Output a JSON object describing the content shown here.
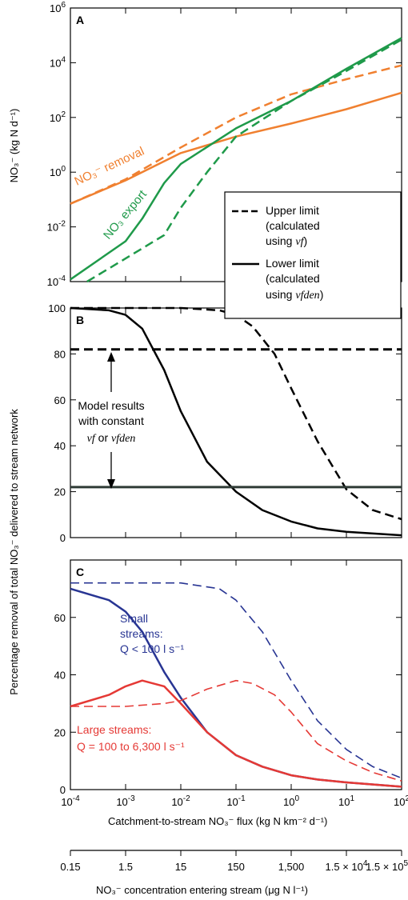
{
  "chart_data": [
    {
      "panel": "A",
      "type": "line",
      "x_scale": "log",
      "y_scale": "log",
      "xlim": [
        0.0001,
        100
      ],
      "ylim": [
        0.0001,
        1000000
      ],
      "ylabel": "NO₃⁻ (kg N d⁻¹)",
      "y_ticks": [
        {
          "v": 0.0001,
          "m": "10",
          "e": "-4"
        },
        {
          "v": 0.01,
          "m": "10",
          "e": "-2"
        },
        {
          "v": 1,
          "m": "10",
          "e": "0"
        },
        {
          "v": 100,
          "m": "10",
          "e": "2"
        },
        {
          "v": 10000,
          "m": "10",
          "e": "4"
        },
        {
          "v": 1000000,
          "m": "10",
          "e": "6"
        }
      ],
      "series": [
        {
          "name": "NO₃⁻ removal",
          "style": "solid",
          "color": "#f08030",
          "points": [
            [
              0.0001,
              0.07
            ],
            [
              0.001,
              0.5
            ],
            [
              0.01,
              5
            ],
            [
              0.1,
              20
            ],
            [
              1,
              60
            ],
            [
              10,
              200
            ],
            [
              100,
              800
            ]
          ]
        },
        {
          "name": "NO₃⁻ removal",
          "style": "dashed",
          "color": "#f08030",
          "points": [
            [
              0.0001,
              0.07
            ],
            [
              0.001,
              0.55
            ],
            [
              0.01,
              8
            ],
            [
              0.1,
              100
            ],
            [
              1,
              700
            ],
            [
              10,
              2500
            ],
            [
              100,
              8000
            ]
          ]
        },
        {
          "name": "NO₃ export",
          "style": "solid",
          "color": "#1f9a4a",
          "points": [
            [
              0.0001,
              0.00012
            ],
            [
              0.001,
              0.003
            ],
            [
              0.002,
              0.02
            ],
            [
              0.005,
              0.4
            ],
            [
              0.01,
              2
            ],
            [
              0.1,
              40
            ],
            [
              1,
              400
            ],
            [
              10,
              6000
            ],
            [
              100,
              80000
            ]
          ]
        },
        {
          "name": "NO₃ export",
          "style": "dashed",
          "color": "#1f9a4a",
          "points": [
            [
              0.0002,
              0.0001
            ],
            [
              0.001,
              0.0007
            ],
            [
              0.005,
              0.005
            ],
            [
              0.01,
              0.05
            ],
            [
              0.03,
              1
            ],
            [
              0.1,
              20
            ],
            [
              1,
              400
            ],
            [
              10,
              5000
            ],
            [
              100,
              70000
            ]
          ]
        }
      ],
      "annotations": {
        "removal_label": "NO₃⁻ removal",
        "export_label": "NO₃ export"
      },
      "legend": {
        "placement": "lower-right",
        "upper_line1": "Upper limit",
        "upper_line2": "(calculated",
        "upper_line3_pre": "using ",
        "upper_line3_var": "vf",
        "lower_line1": "Lower limit",
        "lower_line2": "(calculated",
        "lower_line3_pre": "using ",
        "lower_line3_var": "vfden"
      }
    },
    {
      "panel": "B",
      "type": "line",
      "x_scale": "log",
      "xlim": [
        0.0001,
        100
      ],
      "ylim": [
        0,
        100
      ],
      "y_ticks": [
        0,
        20,
        40,
        60,
        80,
        100
      ],
      "series": [
        {
          "style": "dashed",
          "color": "#000000",
          "points": [
            [
              0.0001,
              100
            ],
            [
              0.01,
              100
            ],
            [
              0.05,
              99
            ],
            [
              0.1,
              97
            ],
            [
              0.2,
              92
            ],
            [
              0.5,
              80
            ],
            [
              1,
              65
            ],
            [
              3,
              42
            ],
            [
              10,
              21
            ],
            [
              30,
              12
            ],
            [
              100,
              8
            ]
          ]
        },
        {
          "style": "solid",
          "color": "#000000",
          "points": [
            [
              0.0001,
              100
            ],
            [
              0.0005,
              99
            ],
            [
              0.001,
              97
            ],
            [
              0.002,
              91
            ],
            [
              0.005,
              73
            ],
            [
              0.01,
              55
            ],
            [
              0.03,
              33
            ],
            [
              0.1,
              20
            ],
            [
              0.3,
              12
            ],
            [
              1,
              7
            ],
            [
              3,
              4
            ],
            [
              10,
              2.5
            ],
            [
              100,
              1
            ]
          ]
        },
        {
          "style": "dashed-constant",
          "color": "#000000",
          "points": [
            [
              0.0001,
              82
            ],
            [
              100,
              82
            ]
          ]
        },
        {
          "style": "solid-constant",
          "color": "#2f3b36",
          "points": [
            [
              0.0001,
              22
            ],
            [
              100,
              22
            ]
          ]
        }
      ],
      "annotation": {
        "line1": "Model results",
        "line2": "with constant",
        "line3_v1": "vf",
        "line3_or": "or",
        "line3_v2": "vfden"
      }
    },
    {
      "panel": "C",
      "type": "line",
      "x_scale": "log",
      "xlim": [
        0.0001,
        100
      ],
      "ylim": [
        0,
        80
      ],
      "y_ticks": [
        0,
        20,
        40,
        60
      ],
      "x_ticks": [
        {
          "v": 0.0001,
          "m": "10",
          "e": "-4"
        },
        {
          "v": 0.001,
          "m": "10",
          "e": "-3"
        },
        {
          "v": 0.01,
          "m": "10",
          "e": "-2"
        },
        {
          "v": 0.1,
          "m": "10",
          "e": "-1"
        },
        {
          "v": 1,
          "m": "10",
          "e": "0"
        },
        {
          "v": 10,
          "m": "10",
          "e": "1"
        },
        {
          "v": 100,
          "m": "10",
          "e": "2"
        }
      ],
      "series": [
        {
          "name": "Small streams",
          "style": "solid",
          "color": "#283593",
          "points": [
            [
              0.0001,
              70
            ],
            [
              0.0005,
              66
            ],
            [
              0.001,
              62
            ],
            [
              0.002,
              55
            ],
            [
              0.005,
              41
            ],
            [
              0.01,
              32
            ],
            [
              0.03,
              20
            ],
            [
              0.1,
              12
            ],
            [
              0.3,
              8
            ],
            [
              1,
              5
            ],
            [
              3,
              3.5
            ],
            [
              10,
              2.5
            ],
            [
              100,
              1
            ]
          ]
        },
        {
          "name": "Small streams",
          "style": "dashed",
          "color": "#283593",
          "points": [
            [
              0.0001,
              72
            ],
            [
              0.01,
              72
            ],
            [
              0.05,
              70
            ],
            [
              0.1,
              66
            ],
            [
              0.3,
              55
            ],
            [
              1,
              38
            ],
            [
              3,
              24
            ],
            [
              10,
              14
            ],
            [
              30,
              8
            ],
            [
              100,
              4
            ]
          ]
        },
        {
          "name": "Large streams",
          "style": "solid",
          "color": "#e53935",
          "points": [
            [
              0.0001,
              29
            ],
            [
              0.0005,
              33
            ],
            [
              0.001,
              36
            ],
            [
              0.002,
              38
            ],
            [
              0.005,
              36
            ],
            [
              0.01,
              30
            ],
            [
              0.03,
              20
            ],
            [
              0.1,
              12
            ],
            [
              0.3,
              8
            ],
            [
              1,
              5
            ],
            [
              3,
              3.5
            ],
            [
              10,
              2.5
            ],
            [
              100,
              1
            ]
          ]
        },
        {
          "name": "Large streams",
          "style": "dashed",
          "color": "#e53935",
          "points": [
            [
              0.0001,
              29
            ],
            [
              0.001,
              29
            ],
            [
              0.005,
              30
            ],
            [
              0.01,
              31
            ],
            [
              0.03,
              35
            ],
            [
              0.1,
              38
            ],
            [
              0.2,
              37
            ],
            [
              0.5,
              33
            ],
            [
              1,
              27
            ],
            [
              3,
              16
            ],
            [
              10,
              10
            ],
            [
              30,
              6
            ],
            [
              100,
              3
            ]
          ]
        }
      ],
      "annotations": {
        "small_line1": "Small",
        "small_line2": "streams:",
        "small_line3": "Q < 100 l s⁻¹",
        "large_line1": "Large streams:",
        "large_line2": "Q = 100 to 6,300 l s⁻¹"
      }
    }
  ],
  "shared_ylabel_bc": "Percentage removal of total NO₃⁻ delivered to stream network",
  "xlabel": "Catchment-to-stream NO₃⁻ flux (kg N km⁻² d⁻¹)",
  "secondary_axis": {
    "label": "NO₃⁻ concentration entering stream (μg N l⁻¹)",
    "ticks": [
      {
        "t": "0.15"
      },
      {
        "t": "1.5"
      },
      {
        "t": "15"
      },
      {
        "t": "150"
      },
      {
        "t": "1,500"
      },
      {
        "t": "1.5 × 10",
        "e": "4"
      },
      {
        "t": "1.5 × 10",
        "e": "5"
      }
    ]
  }
}
